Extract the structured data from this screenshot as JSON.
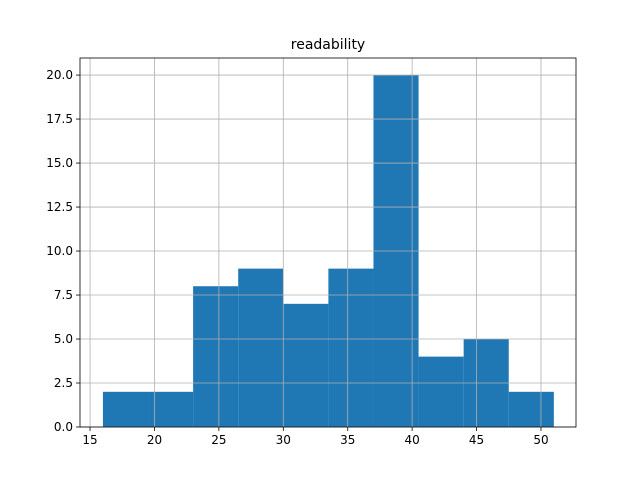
{
  "chart_data": {
    "type": "histogram",
    "title": "readability",
    "bins": [
      16,
      19.5,
      23,
      26.5,
      30,
      33.5,
      37,
      40.5,
      44,
      47.5,
      51
    ],
    "values": [
      2,
      2,
      8,
      9,
      7,
      9,
      20,
      4,
      5,
      2
    ],
    "color": "#1f77b4",
    "xlim": [
      14.22,
      52.72
    ],
    "xticks": [
      15,
      20,
      25,
      30,
      35,
      40,
      45,
      50
    ],
    "ylim": [
      0,
      20.97
    ],
    "yticks": [
      {
        "value": 0,
        "label": "0.0"
      },
      {
        "value": 2.5,
        "label": "2.5"
      },
      {
        "value": 5,
        "label": "5.0"
      },
      {
        "value": 7.5,
        "label": "7.5"
      },
      {
        "value": 10,
        "label": "10.0"
      },
      {
        "value": 12.5,
        "label": "12.5"
      },
      {
        "value": 15,
        "label": "15.0"
      },
      {
        "value": 17.5,
        "label": "17.5"
      },
      {
        "value": 20,
        "label": "20.0"
      }
    ],
    "grid": true
  }
}
